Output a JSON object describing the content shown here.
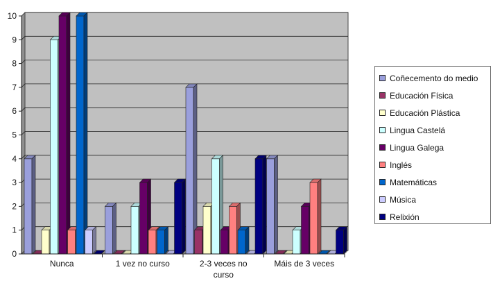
{
  "chart_data": {
    "type": "bar",
    "title": "",
    "xlabel": "",
    "ylabel": "",
    "ylim": [
      0,
      10
    ],
    "yticks": [
      0,
      1,
      2,
      3,
      4,
      5,
      6,
      7,
      8,
      9,
      10
    ],
    "grid": true,
    "legend_position": "right",
    "categories": [
      "Nunca",
      "1 vez no curso",
      "2-3 veces no curso",
      "Máis de 3 veces"
    ],
    "series": [
      {
        "name": "Coñecemento do medio",
        "color": "#9a9fdc",
        "values": [
          4,
          2,
          7,
          4
        ]
      },
      {
        "name": "Educación Física",
        "color": "#993366",
        "values": [
          0,
          0,
          1,
          0
        ]
      },
      {
        "name": "Educación Plástica",
        "color": "#ffffcc",
        "values": [
          1,
          0,
          2,
          0
        ]
      },
      {
        "name": "Lingua Castelá",
        "color": "#ccffff",
        "values": [
          9,
          2,
          4,
          1
        ]
      },
      {
        "name": "Lingua Galega",
        "color": "#660066",
        "values": [
          10,
          3,
          1,
          2
        ]
      },
      {
        "name": "Inglés",
        "color": "#ff8080",
        "values": [
          1,
          1,
          2,
          3
        ]
      },
      {
        "name": "Matemáticas",
        "color": "#0066cc",
        "values": [
          10,
          1,
          1,
          0
        ]
      },
      {
        "name": "Música",
        "color": "#ccccff",
        "values": [
          1,
          0,
          0,
          0
        ]
      },
      {
        "name": "Relixión",
        "color": "#000080",
        "values": [
          0,
          3,
          4,
          1
        ]
      }
    ]
  }
}
